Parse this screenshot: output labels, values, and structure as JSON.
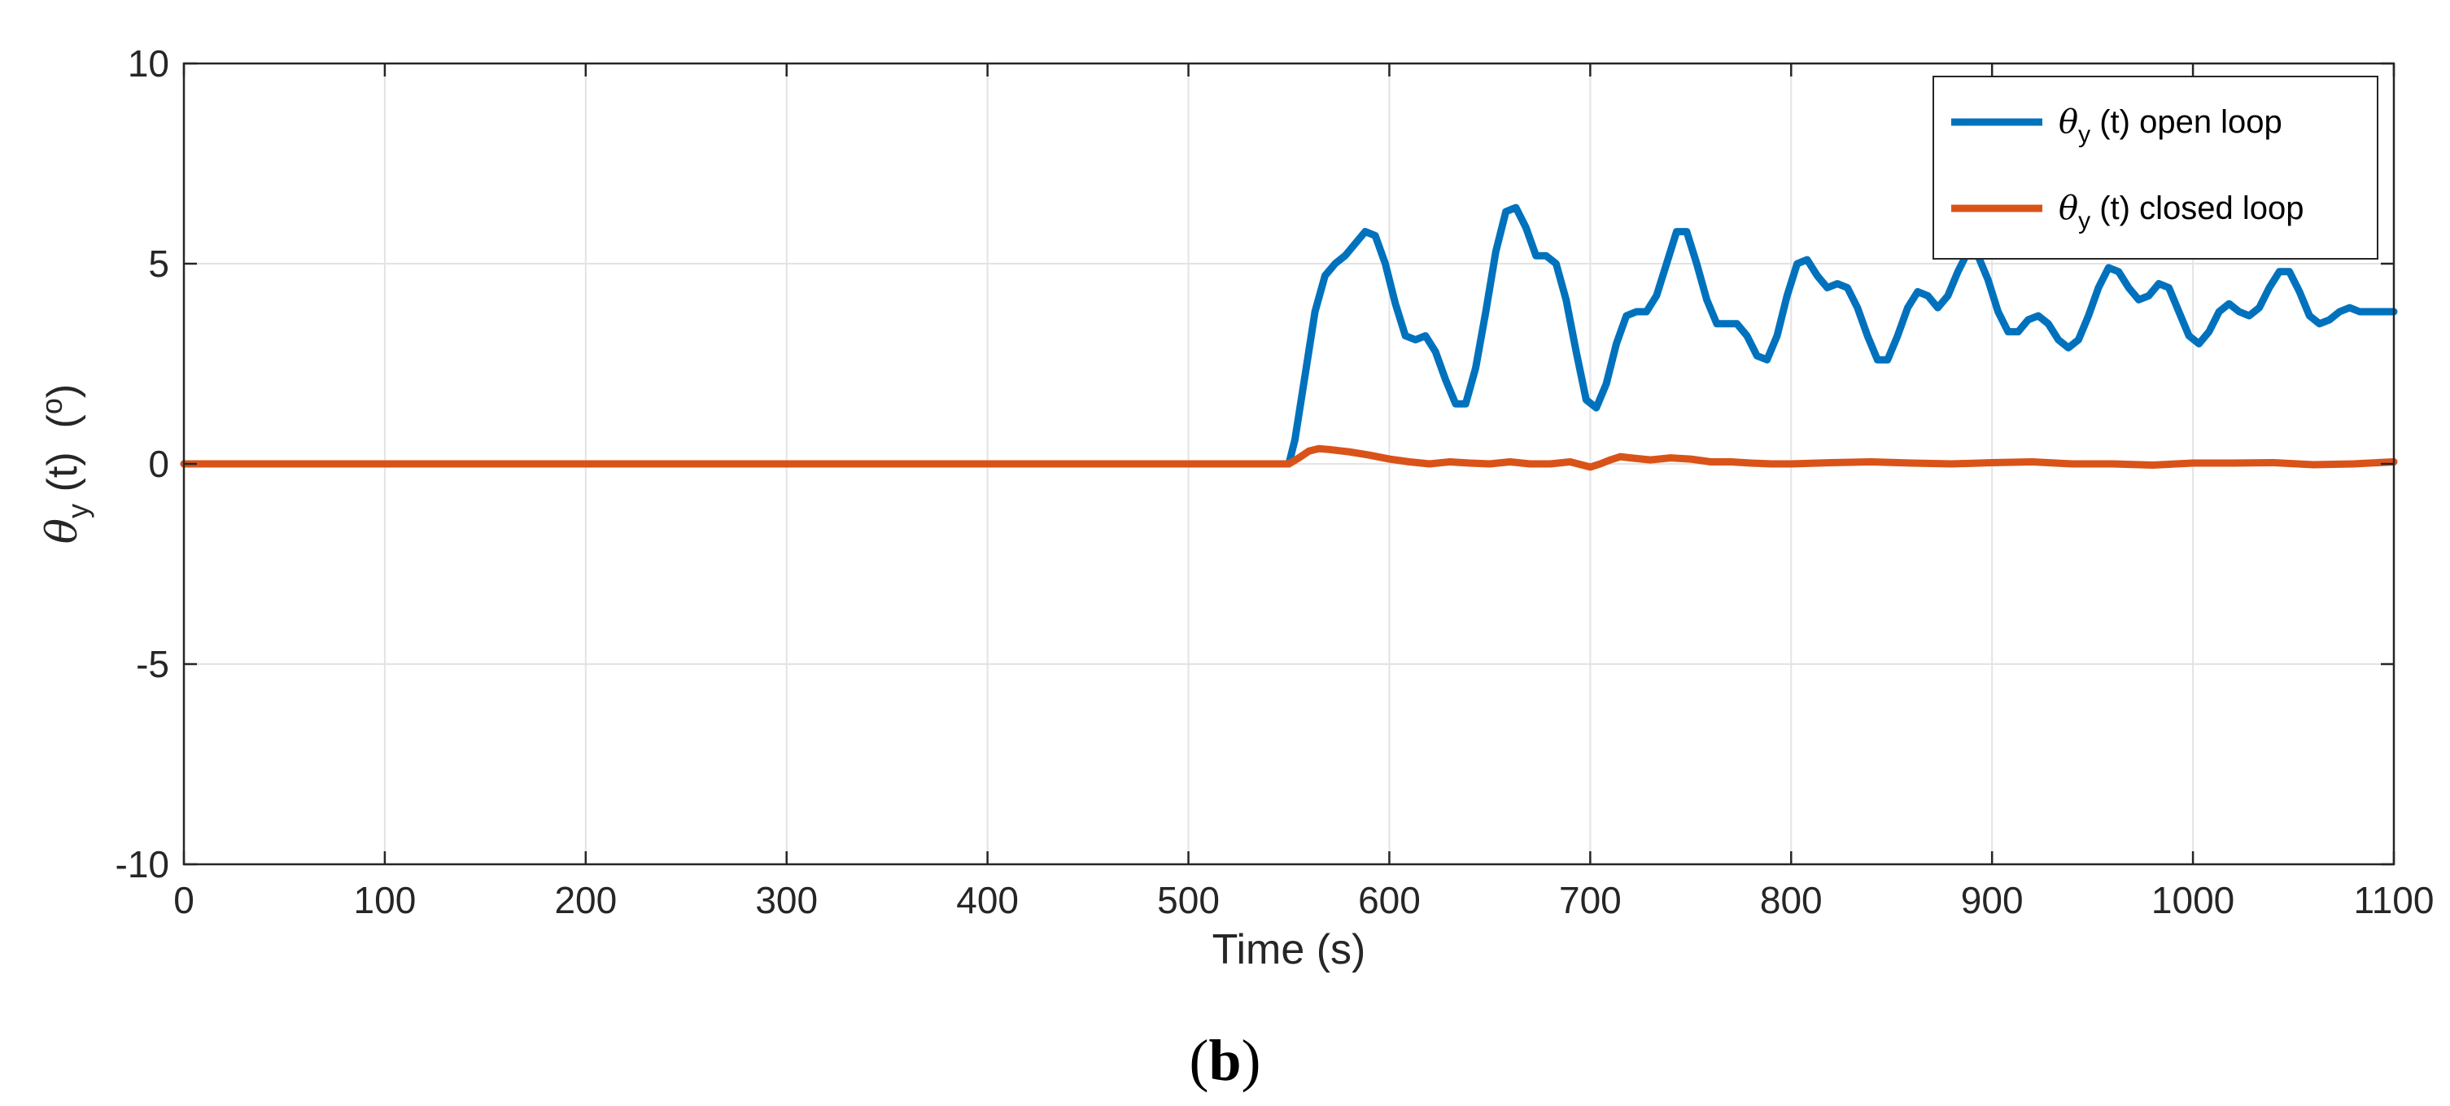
{
  "colors": {
    "open_loop": "#0072BD",
    "closed_loop": "#D95319",
    "grid": "#e3e3e3",
    "axis": "#262626"
  },
  "caption": {
    "open": "(",
    "letter": "b",
    "close": ")"
  },
  "chart_data": {
    "type": "line",
    "title": "",
    "xlabel": "Time (s)",
    "ylabel": {
      "symbol": "θ",
      "subscript": "y",
      "arg": " (t)  (",
      "unit": "o",
      "end": ")"
    },
    "xlim": [
      0,
      1100
    ],
    "ylim": [
      -10,
      10
    ],
    "xticks": [
      0,
      100,
      200,
      300,
      400,
      500,
      600,
      700,
      800,
      900,
      1000,
      1100
    ],
    "yticks": [
      -10,
      -5,
      0,
      5,
      10
    ],
    "grid": true,
    "legend_position": "top-right",
    "series": [
      {
        "name": "θy (t) open loop",
        "label": {
          "symbol": "θ",
          "subscript": "y",
          "text": " (t) open loop"
        },
        "color": "#0072BD",
        "x": [
          0,
          100,
          200,
          300,
          400,
          500,
          550,
          553,
          558,
          563,
          568,
          573,
          578,
          583,
          588,
          593,
          598,
          603,
          608,
          613,
          618,
          623,
          628,
          633,
          638,
          643,
          648,
          653,
          658,
          663,
          668,
          673,
          678,
          683,
          688,
          693,
          698,
          703,
          708,
          713,
          718,
          723,
          728,
          733,
          738,
          743,
          748,
          753,
          758,
          763,
          768,
          773,
          778,
          783,
          788,
          793,
          798,
          803,
          808,
          813,
          818,
          823,
          828,
          833,
          838,
          843,
          848,
          853,
          858,
          863,
          868,
          873,
          878,
          883,
          888,
          893,
          898,
          903,
          908,
          913,
          918,
          923,
          928,
          933,
          938,
          943,
          948,
          953,
          958,
          963,
          968,
          973,
          978,
          983,
          988,
          993,
          998,
          1003,
          1008,
          1013,
          1018,
          1023,
          1028,
          1033,
          1038,
          1043,
          1048,
          1053,
          1058,
          1063,
          1068,
          1073,
          1078,
          1083,
          1088,
          1093,
          1098,
          1100
        ],
        "y": [
          0,
          0,
          0,
          0,
          0,
          0,
          0,
          0.6,
          2.2,
          3.8,
          4.7,
          5.0,
          5.2,
          5.5,
          5.8,
          5.7,
          5.0,
          4.0,
          3.2,
          3.1,
          3.2,
          2.8,
          2.1,
          1.5,
          1.5,
          2.4,
          3.8,
          5.3,
          6.3,
          6.4,
          5.9,
          5.2,
          5.2,
          5.0,
          4.1,
          2.8,
          1.6,
          1.4,
          2.0,
          3.0,
          3.7,
          3.8,
          3.8,
          4.2,
          5.0,
          5.8,
          5.8,
          5.0,
          4.1,
          3.5,
          3.5,
          3.5,
          3.2,
          2.7,
          2.6,
          3.2,
          4.2,
          5.0,
          5.1,
          4.7,
          4.4,
          4.5,
          4.4,
          3.9,
          3.2,
          2.6,
          2.6,
          3.2,
          3.9,
          4.3,
          4.2,
          3.9,
          4.2,
          4.8,
          5.3,
          5.2,
          4.6,
          3.8,
          3.3,
          3.3,
          3.6,
          3.7,
          3.5,
          3.1,
          2.9,
          3.1,
          3.7,
          4.4,
          4.9,
          4.8,
          4.4,
          4.1,
          4.2,
          4.5,
          4.4,
          3.8,
          3.2,
          3.0,
          3.3,
          3.8,
          4.0,
          3.8,
          3.7,
          3.9,
          4.4,
          4.8,
          4.8,
          4.3,
          3.7,
          3.5,
          3.6,
          3.8,
          3.9,
          3.8,
          3.8,
          3.8,
          3.8,
          3.8
        ]
      },
      {
        "name": "θy (t) closed loop",
        "label": {
          "symbol": "θ",
          "subscript": "y",
          "text": " (t) closed loop"
        },
        "color": "#D95319",
        "x": [
          0,
          100,
          200,
          300,
          400,
          500,
          550,
          555,
          560,
          565,
          570,
          580,
          590,
          600,
          610,
          620,
          630,
          640,
          650,
          660,
          670,
          680,
          690,
          700,
          705,
          710,
          715,
          720,
          730,
          740,
          750,
          760,
          770,
          780,
          790,
          800,
          820,
          840,
          860,
          880,
          900,
          920,
          940,
          960,
          980,
          1000,
          1020,
          1040,
          1060,
          1080,
          1100
        ],
        "y": [
          0,
          0,
          0,
          0,
          0,
          0,
          0,
          0.15,
          0.32,
          0.38,
          0.36,
          0.3,
          0.22,
          0.12,
          0.05,
          0.0,
          0.05,
          0.02,
          0.0,
          0.05,
          0.0,
          0.0,
          0.05,
          -0.08,
          0.0,
          0.1,
          0.18,
          0.15,
          0.1,
          0.15,
          0.12,
          0.05,
          0.05,
          0.02,
          0.0,
          0.0,
          0.03,
          0.05,
          0.02,
          0.0,
          0.03,
          0.05,
          0.0,
          0.0,
          -0.03,
          0.02,
          0.02,
          0.03,
          -0.02,
          0.0,
          0.05
        ]
      }
    ]
  }
}
